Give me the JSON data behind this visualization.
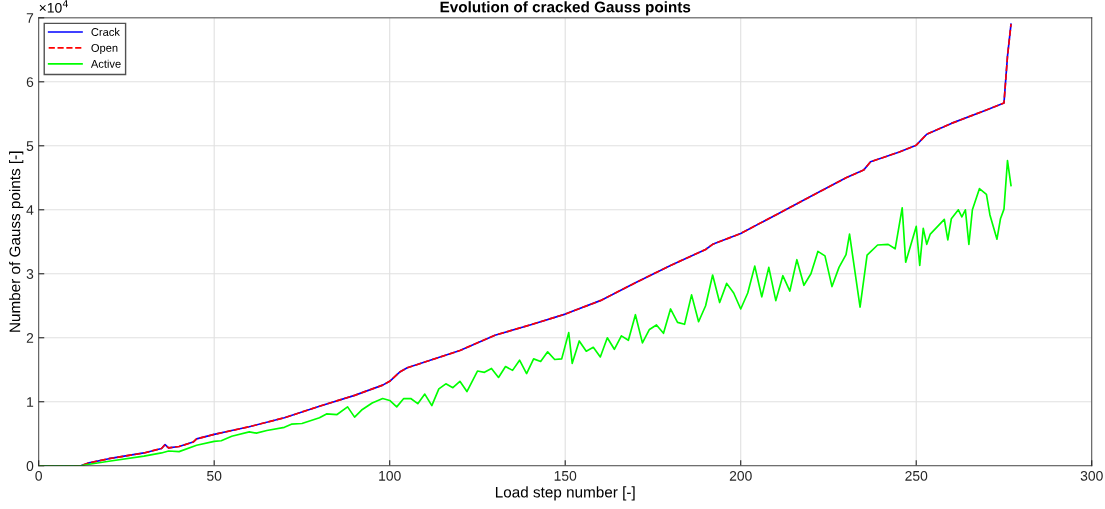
{
  "chart_data": {
    "type": "line",
    "title": "Evolution of cracked Gauss points",
    "xlabel": "Load step number [-]",
    "ylabel": "Number of Gauss points [-]",
    "annotations": [
      "×10$^{4}$"
    ],
    "xlim": [
      0,
      300
    ],
    "xticks": [
      0,
      50,
      100,
      150,
      200,
      250,
      300
    ],
    "ylim": [
      0,
      7
    ],
    "yticks": [
      0,
      1,
      2,
      3,
      4,
      5,
      6,
      7
    ],
    "grid": true,
    "legend": "top left",
    "series": [
      {
        "name": "Crack",
        "color": "#0000ff",
        "line_style": "solid",
        "x": [
          0,
          12,
          14,
          20,
          30,
          35,
          36,
          37,
          40,
          44,
          45,
          50,
          55,
          60,
          70,
          80,
          90,
          98,
          100,
          103,
          105,
          110,
          120,
          130,
          140,
          150,
          160,
          170,
          180,
          190,
          192,
          200,
          210,
          220,
          230,
          235,
          237,
          245,
          250,
          253,
          260,
          270,
          275,
          276,
          277
        ],
        "values": [
          0,
          0,
          0.04,
          0.11,
          0.2,
          0.27,
          0.33,
          0.28,
          0.3,
          0.37,
          0.42,
          0.49,
          0.55,
          0.61,
          0.75,
          0.93,
          1.1,
          1.26,
          1.32,
          1.47,
          1.53,
          1.62,
          1.8,
          2.04,
          2.2,
          2.37,
          2.58,
          2.86,
          3.13,
          3.38,
          3.46,
          3.63,
          3.92,
          4.21,
          4.5,
          4.62,
          4.75,
          4.9,
          5.01,
          5.18,
          5.35,
          5.56,
          5.67,
          6.4,
          6.9
        ]
      },
      {
        "name": "Open",
        "color": "#ff0000",
        "line_style": "dashed",
        "x": [
          0,
          12,
          14,
          20,
          30,
          35,
          36,
          37,
          40,
          44,
          45,
          50,
          55,
          60,
          70,
          80,
          90,
          98,
          100,
          103,
          105,
          110,
          120,
          130,
          140,
          150,
          160,
          170,
          180,
          190,
          192,
          200,
          210,
          220,
          230,
          235,
          237,
          245,
          250,
          253,
          260,
          270,
          275,
          276,
          277
        ],
        "values": [
          0,
          0,
          0.04,
          0.11,
          0.2,
          0.27,
          0.33,
          0.28,
          0.3,
          0.37,
          0.42,
          0.49,
          0.55,
          0.61,
          0.75,
          0.93,
          1.1,
          1.26,
          1.32,
          1.47,
          1.53,
          1.62,
          1.8,
          2.04,
          2.2,
          2.37,
          2.58,
          2.86,
          3.13,
          3.38,
          3.46,
          3.63,
          3.92,
          4.21,
          4.5,
          4.62,
          4.75,
          4.9,
          5.01,
          5.18,
          5.35,
          5.56,
          5.67,
          6.4,
          6.9
        ]
      },
      {
        "name": "Active",
        "color": "#00ff00",
        "line_style": "solid",
        "x": [
          0,
          12,
          14,
          20,
          30,
          35,
          37,
          40,
          45,
          50,
          52,
          55,
          60,
          62,
          65,
          70,
          72,
          75,
          80,
          82,
          85,
          88,
          90,
          92,
          95,
          98,
          100,
          102,
          104,
          106,
          108,
          110,
          112,
          114,
          116,
          118,
          120,
          122,
          125,
          127,
          129,
          131,
          133,
          135,
          137,
          139,
          141,
          143,
          145,
          147,
          149,
          151,
          152,
          154,
          156,
          158,
          160,
          162,
          164,
          166,
          168,
          170,
          172,
          174,
          176,
          178,
          180,
          182,
          184,
          186,
          188,
          190,
          192,
          194,
          196,
          198,
          200,
          202,
          204,
          206,
          208,
          210,
          212,
          214,
          216,
          218,
          220,
          222,
          224,
          226,
          228,
          230,
          231,
          234,
          236,
          239,
          242,
          244,
          246,
          247,
          250,
          251,
          252,
          253,
          254,
          258,
          259,
          260,
          262,
          263,
          264,
          265,
          266,
          268,
          270,
          271,
          273,
          274,
          275,
          276,
          277
        ],
        "values": [
          0,
          0,
          0.02,
          0.07,
          0.15,
          0.2,
          0.23,
          0.22,
          0.32,
          0.38,
          0.39,
          0.46,
          0.53,
          0.51,
          0.55,
          0.6,
          0.65,
          0.66,
          0.75,
          0.81,
          0.8,
          0.92,
          0.76,
          0.87,
          0.98,
          1.05,
          1.02,
          0.92,
          1.05,
          1.05,
          0.97,
          1.12,
          0.94,
          1.2,
          1.28,
          1.22,
          1.32,
          1.16,
          1.48,
          1.46,
          1.52,
          1.38,
          1.55,
          1.49,
          1.65,
          1.44,
          1.67,
          1.63,
          1.78,
          1.66,
          1.67,
          2.08,
          1.6,
          1.95,
          1.79,
          1.85,
          1.7,
          2.0,
          1.82,
          2.03,
          1.96,
          2.36,
          1.92,
          2.13,
          2.2,
          2.07,
          2.45,
          2.24,
          2.21,
          2.67,
          2.25,
          2.5,
          2.98,
          2.55,
          2.85,
          2.7,
          2.45,
          2.7,
          3.12,
          2.64,
          3.1,
          2.58,
          2.97,
          2.73,
          3.22,
          2.82,
          3.0,
          3.35,
          3.28,
          2.8,
          3.1,
          3.3,
          3.62,
          2.48,
          3.29,
          3.45,
          3.46,
          3.39,
          4.03,
          3.18,
          3.74,
          3.13,
          3.71,
          3.46,
          3.62,
          3.85,
          3.53,
          3.86,
          4.0,
          3.89,
          4.0,
          3.46,
          4.0,
          4.33,
          4.24,
          3.92,
          3.54,
          3.86,
          4.01,
          4.77,
          4.38
        ]
      }
    ]
  }
}
